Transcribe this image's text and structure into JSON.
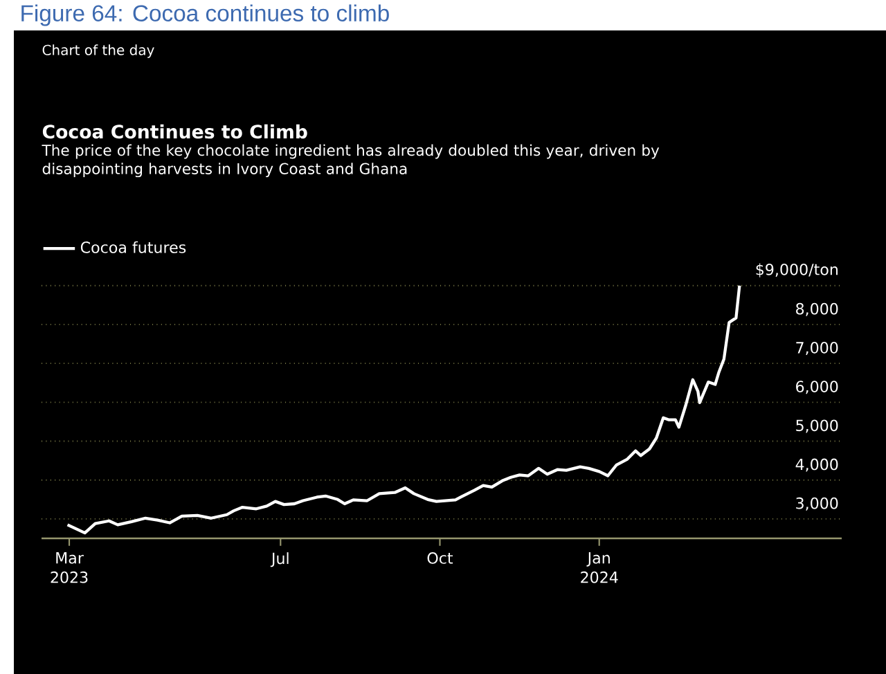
{
  "chart_data": {
    "type": "line",
    "title": "Cocoa Continues to Climb",
    "subtitle": "The price of the key chocolate ingredient has already doubled this year, driven by disappointing harvests in Ivory Coast and Ghana",
    "annotations": [
      "Figure 64: Cocoa continues to climb",
      "Chart of the day"
    ],
    "legend": "top left",
    "grid": "y",
    "xlim": [
      "2023-02-13",
      "2024-05-20"
    ],
    "xticks": [
      {
        "value": "2023-03-01",
        "label": "Mar 2023"
      },
      {
        "value": "2023-07-01",
        "label": "Jul"
      },
      {
        "value": "2023-10-01",
        "label": "Oct"
      },
      {
        "value": "2024-01-01",
        "label": "Jan 2024"
      }
    ],
    "ylim": [
      2500,
      9000
    ],
    "yticks": [
      {
        "value": 3000,
        "label": "3,000"
      },
      {
        "value": 4000,
        "label": "4,000"
      },
      {
        "value": 5000,
        "label": "5,000"
      },
      {
        "value": 6000,
        "label": "6,000"
      },
      {
        "value": 7000,
        "label": "7,000"
      },
      {
        "value": 8000,
        "label": "8,000"
      },
      {
        "value": 9000,
        "label": "$9,000/ton"
      }
    ],
    "series": [
      {
        "name": "Cocoa futures",
        "color": "#ffffff",
        "x": [
          "2023-02-28",
          "2023-03-10",
          "2023-03-16",
          "2023-03-24",
          "2023-03-29",
          "2023-04-06",
          "2023-04-14",
          "2023-04-21",
          "2023-04-28",
          "2023-05-05",
          "2023-05-14",
          "2023-05-22",
          "2023-05-31",
          "2023-06-04",
          "2023-06-09",
          "2023-06-17",
          "2023-06-23",
          "2023-06-28",
          "2023-07-03",
          "2023-07-09",
          "2023-07-14",
          "2023-07-22",
          "2023-07-27",
          "2023-08-03",
          "2023-08-07",
          "2023-08-12",
          "2023-08-20",
          "2023-08-27",
          "2023-09-05",
          "2023-09-11",
          "2023-09-16",
          "2023-09-24",
          "2023-09-29",
          "2023-10-10",
          "2023-10-13",
          "2023-10-21",
          "2023-10-26",
          "2023-10-31",
          "2023-11-06",
          "2023-11-11",
          "2023-11-16",
          "2023-11-21",
          "2023-11-27",
          "2023-12-02",
          "2023-12-08",
          "2023-12-13",
          "2023-12-21",
          "2023-12-26",
          "2024-01-01",
          "2024-01-06",
          "2024-01-11",
          "2024-01-17",
          "2024-01-22",
          "2024-01-25",
          "2024-01-30",
          "2024-02-03",
          "2024-02-07",
          "2024-02-10",
          "2024-02-14",
          "2024-02-16",
          "2024-02-20",
          "2024-02-24",
          "2024-02-27",
          "2024-02-28",
          "2024-03-04",
          "2024-03-08",
          "2024-03-10",
          "2024-03-13",
          "2024-03-16",
          "2024-03-20",
          "2024-03-22"
        ],
        "values": [
          2850,
          2640,
          2880,
          2950,
          2850,
          2930,
          3020,
          2970,
          2900,
          3070,
          3090,
          3020,
          3110,
          3210,
          3300,
          3260,
          3330,
          3450,
          3370,
          3390,
          3470,
          3560,
          3590,
          3500,
          3390,
          3490,
          3470,
          3650,
          3680,
          3800,
          3650,
          3500,
          3450,
          3490,
          3560,
          3740,
          3860,
          3820,
          3980,
          4070,
          4130,
          4110,
          4300,
          4150,
          4270,
          4250,
          4340,
          4300,
          4220,
          4110,
          4390,
          4530,
          4750,
          4630,
          4800,
          5080,
          5600,
          5550,
          5550,
          5360,
          5930,
          6580,
          6280,
          5990,
          6520,
          6460,
          6760,
          7110,
          8050,
          8170,
          9000
        ]
      }
    ]
  }
}
